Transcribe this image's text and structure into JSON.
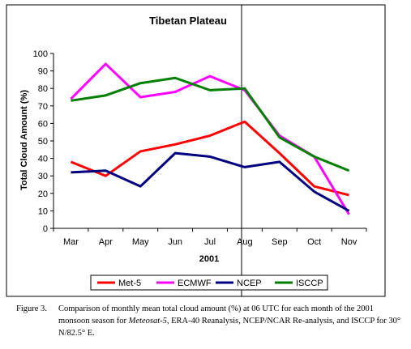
{
  "chart_data": {
    "type": "line",
    "title": "Tibetan Plateau",
    "xlabel": "2001",
    "ylabel": "Total Cloud Amount (%)",
    "categories": [
      "Mar",
      "Apr",
      "May",
      "Jun",
      "Jul",
      "Aug",
      "Sep",
      "Oct",
      "Nov"
    ],
    "ylim": [
      0,
      100
    ],
    "yticks": [
      0,
      10,
      20,
      30,
      40,
      50,
      60,
      70,
      80,
      90,
      100
    ],
    "grid": false,
    "legend_position": "bottom",
    "series": [
      {
        "name": "Met-5",
        "color": "#ff0000",
        "values": [
          38,
          30,
          44,
          48,
          53,
          61,
          43,
          24,
          19
        ]
      },
      {
        "name": "ECMWF",
        "color": "#ff00ff",
        "values": [
          74,
          94,
          75,
          78,
          87,
          79,
          53,
          41,
          8
        ]
      },
      {
        "name": "NCEP",
        "color": "#000080",
        "values": [
          32,
          33,
          24,
          43,
          41,
          35,
          38,
          21,
          10
        ]
      },
      {
        "name": "ISCCP",
        "color": "#008000",
        "values": [
          73,
          76,
          83,
          86,
          79,
          80,
          52,
          41,
          33
        ]
      }
    ]
  },
  "caption": {
    "label": "Figure 3.",
    "line1": "Comparison of monthly mean total cloud amount (%) at 06 UTC for each month of the 2001",
    "line2_pre": "monsoon season for ",
    "line2_italic": "Meteosat-5",
    "line2_post": ", ERA-40 Reanalysis, NCEP/NCAR Re-analysis, and ISCCP for 30°",
    "line3": "N/82.5° E."
  }
}
